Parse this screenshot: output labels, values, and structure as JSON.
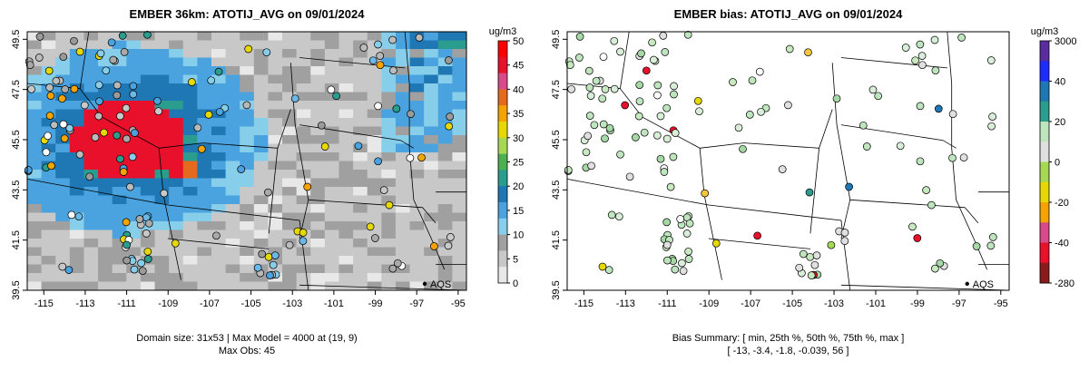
{
  "chart_data": [
    {
      "type": "heatmap",
      "title": "EMBER 36km: ATOTIJ_AVG on 09/01/2024",
      "units": "ug/m3",
      "x_ticks": [
        "-115",
        "-113",
        "-111",
        "-109",
        "-107",
        "-105",
        "-103",
        "-101",
        "-99",
        "-97",
        "-95"
      ],
      "y_ticks": [
        "39.5",
        "41.5",
        "43.5",
        "45.5",
        "47.5",
        "49.5"
      ],
      "xlim": [
        -115.8,
        -94.6
      ],
      "ylim": [
        39.5,
        49.8
      ],
      "colorbar": {
        "labels": [
          "0",
          "5",
          "10",
          "15",
          "20",
          "25",
          "30",
          "35",
          "40",
          "45",
          "50"
        ],
        "range": [
          0,
          50
        ],
        "colors": [
          "#e8e8e8",
          "#c8c8c8",
          "#a0a0a0",
          "#87ceeb",
          "#4aa3df",
          "#1f78b4",
          "#2a9d8f",
          "#4caf50",
          "#a6d854",
          "#e6d800",
          "#f4a300",
          "#e66a1e",
          "#d94a8a",
          "#e8102a",
          "#ff0000"
        ]
      },
      "marker_label": "AQS",
      "footer": [
        "Domain size: 31x53 | Max Model = 4000 at (19, 9)",
        "Max Obs: 45"
      ]
    },
    {
      "type": "scatter",
      "title": "EMBER bias: ATOTIJ_AVG on 09/01/2024",
      "units": "ug/m3",
      "x_ticks": [
        "-115",
        "-113",
        "-111",
        "-109",
        "-107",
        "-105",
        "-103",
        "-101",
        "-99",
        "-97",
        "-95"
      ],
      "y_ticks": [
        "39.5",
        "41.5",
        "43.5",
        "45.5",
        "47.5",
        "49.5"
      ],
      "xlim": [
        -115.8,
        -94.6
      ],
      "ylim": [
        39.5,
        49.8
      ],
      "colorbar": {
        "labels": [
          "3000",
          "40",
          "20",
          "0",
          "-20",
          "-40",
          "-280"
        ],
        "colors": [
          "#8b1a1a",
          "#e8102a",
          "#d94a8a",
          "#f4a300",
          "#e6d800",
          "#a6d854",
          "#e0e0e0",
          "#bfe5bf",
          "#2a9d8f",
          "#1f78b4",
          "#1e2cff",
          "#5a2ca0"
        ]
      },
      "marker_label": "AQS",
      "footer": [
        "Bias Summary: [ min, 25th %, 50th %, 75th %, max ]",
        "[ -13,   -3.4,   -1.8,   -0.039,   56 ]"
      ]
    }
  ]
}
